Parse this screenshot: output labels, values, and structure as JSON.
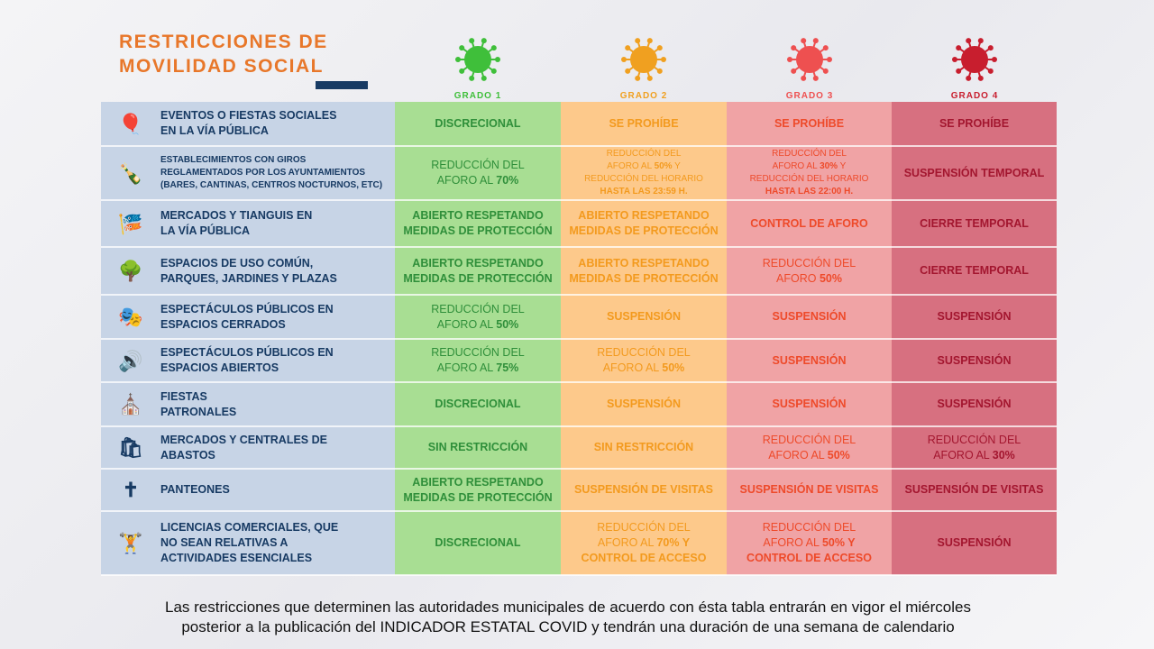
{
  "title": [
    "RESTRICCIONES DE",
    "MOVILIDAD SOCIAL"
  ],
  "grades": [
    {
      "label": "GRADO 1",
      "color": "#3fbf3a"
    },
    {
      "label": "GRADO 2",
      "color": "#f0a020"
    },
    {
      "label": "GRADO 3",
      "color": "#ee5050"
    },
    {
      "label": "GRADO 4",
      "color": "#c81e2e"
    }
  ],
  "rows": [
    {
      "icon": "balloons-icon",
      "glyph": "🎈",
      "small": false,
      "label": [
        "EVENTOS O FIESTAS SOCIALES",
        "EN LA VÍA PÚBLICA"
      ],
      "h": 49,
      "cells": [
        [
          [
            {
              "t": "DISCRECIONAL",
              "b": true
            }
          ]
        ],
        [
          [
            {
              "t": "SE PROHÍBE",
              "b": true
            }
          ]
        ],
        [
          [
            {
              "t": "SE PROHÍBE",
              "b": true
            }
          ]
        ],
        [
          [
            {
              "t": "SE PROHÍBE",
              "b": true
            }
          ]
        ]
      ]
    },
    {
      "icon": "ice-bucket-icon",
      "glyph": "🍾",
      "small": true,
      "label": [
        "ESTABLECIMIENTOS CON GIROS",
        "REGLAMENTADOS POR LOS AYUNTAMIENTOS",
        "(BARES, CANTINAS, CENTROS NOCTURNOS, ETC)"
      ],
      "h": 60,
      "cells": [
        [
          [
            {
              "t": "REDUCCIÓN DEL",
              "b": false
            }
          ],
          [
            {
              "t": "AFORO AL ",
              "b": false
            },
            {
              "t": "70%",
              "b": true
            }
          ]
        ],
        [
          [
            {
              "t": "REDUCCIÓN DEL",
              "b": false
            }
          ],
          [
            {
              "t": "AFORO AL ",
              "b": false
            },
            {
              "t": "50%",
              "b": true
            },
            {
              "t": " Y",
              "b": false
            }
          ],
          [
            {
              "t": "REDUCCIÓN DEL HORARIO",
              "b": false
            }
          ],
          [
            {
              "t": "HASTA LAS 23:59 H.",
              "b": true
            }
          ]
        ],
        [
          [
            {
              "t": "REDUCCIÓN DEL",
              "b": false
            }
          ],
          [
            {
              "t": "AFORO AL ",
              "b": false
            },
            {
              "t": "30%",
              "b": true
            },
            {
              "t": " Y",
              "b": false
            }
          ],
          [
            {
              "t": "REDUCCIÓN DEL HORARIO",
              "b": false
            }
          ],
          [
            {
              "t": "HASTA LAS 22:00 H.",
              "b": true
            }
          ]
        ],
        [
          [
            {
              "t": "SUSPENSIÓN TEMPORAL",
              "b": true
            }
          ]
        ]
      ]
    },
    {
      "icon": "bunting-icon",
      "glyph": "🎏",
      "small": false,
      "label": [
        "MERCADOS Y TIANGUIS EN",
        "LA VÍA PÚBLICA"
      ],
      "h": 52,
      "cells": [
        [
          [
            {
              "t": "ABIERTO RESPETANDO",
              "b": true
            }
          ],
          [
            {
              "t": "MEDIDAS DE PROTECCIÓN",
              "b": true
            }
          ]
        ],
        [
          [
            {
              "t": "ABIERTO RESPETANDO",
              "b": true
            }
          ],
          [
            {
              "t": "MEDIDAS DE PROTECCIÓN",
              "b": true
            }
          ]
        ],
        [
          [
            {
              "t": "CONTROL DE AFORO",
              "b": true
            }
          ]
        ],
        [
          [
            {
              "t": "CIERRE TEMPORAL",
              "b": true
            }
          ]
        ]
      ]
    },
    {
      "icon": "park-icon",
      "glyph": "🌳",
      "small": false,
      "label": [
        "ESPACIOS DE USO COMÚN,",
        "PARQUES, JARDINES Y PLAZAS"
      ],
      "h": 53,
      "cells": [
        [
          [
            {
              "t": "ABIERTO RESPETANDO",
              "b": true
            }
          ],
          [
            {
              "t": "MEDIDAS DE PROTECCIÓN",
              "b": true
            }
          ]
        ],
        [
          [
            {
              "t": "ABIERTO RESPETANDO",
              "b": true
            }
          ],
          [
            {
              "t": "MEDIDAS DE PROTECCIÓN",
              "b": true
            }
          ]
        ],
        [
          [
            {
              "t": "REDUCCIÓN DEL",
              "b": false
            }
          ],
          [
            {
              "t": "AFORO ",
              "b": false
            },
            {
              "t": "50%",
              "b": true
            }
          ]
        ],
        [
          [
            {
              "t": "CIERRE TEMPORAL",
              "b": true
            }
          ]
        ]
      ]
    },
    {
      "icon": "theater-icon",
      "glyph": "🎭",
      "small": false,
      "label": [
        "ESPECTÁCULOS PÚBLICOS EN",
        "ESPACIOS CERRADOS"
      ],
      "h": 49,
      "cells": [
        [
          [
            {
              "t": "REDUCCIÓN DEL",
              "b": false
            }
          ],
          [
            {
              "t": "AFORO AL ",
              "b": false
            },
            {
              "t": "50%",
              "b": true
            }
          ]
        ],
        [
          [
            {
              "t": "SUSPENSIÓN",
              "b": true
            }
          ]
        ],
        [
          [
            {
              "t": "SUSPENSIÓN",
              "b": true
            }
          ]
        ],
        [
          [
            {
              "t": "SUSPENSIÓN",
              "b": true
            }
          ]
        ]
      ]
    },
    {
      "icon": "speakers-icon",
      "glyph": "🔊",
      "small": false,
      "label": [
        "ESPECTÁCULOS PÚBLICOS EN",
        "ESPACIOS ABIERTOS"
      ],
      "h": 48,
      "cells": [
        [
          [
            {
              "t": "REDUCCIÓN DEL",
              "b": false
            }
          ],
          [
            {
              "t": "AFORO AL ",
              "b": false
            },
            {
              "t": "75%",
              "b": true
            }
          ]
        ],
        [
          [
            {
              "t": "REDUCCIÓN DEL",
              "b": false
            }
          ],
          [
            {
              "t": "AFORO AL ",
              "b": false
            },
            {
              "t": "50%",
              "b": true
            }
          ]
        ],
        [
          [
            {
              "t": "SUSPENSIÓN",
              "b": true
            }
          ]
        ],
        [
          [
            {
              "t": "SUSPENSIÓN",
              "b": true
            }
          ]
        ]
      ]
    },
    {
      "icon": "church-icon",
      "glyph": "⛪",
      "small": false,
      "label": [
        "FIESTAS",
        "PATRONALES"
      ],
      "h": 49,
      "cells": [
        [
          [
            {
              "t": "DISCRECIONAL",
              "b": true
            }
          ]
        ],
        [
          [
            {
              "t": "SUSPENSIÓN",
              "b": true
            }
          ]
        ],
        [
          [
            {
              "t": "SUSPENSIÓN",
              "b": true
            }
          ]
        ],
        [
          [
            {
              "t": "SUSPENSIÓN",
              "b": true
            }
          ]
        ]
      ]
    },
    {
      "icon": "shopping-bag-icon",
      "glyph": "🛍",
      "small": false,
      "label": [
        "MERCADOS  Y  CENTRALES  DE",
        "ABASTOS"
      ],
      "h": 47,
      "cells": [
        [
          [
            {
              "t": "SIN RESTRICCIÓN",
              "b": true
            }
          ]
        ],
        [
          [
            {
              "t": "SIN RESTRICCIÓN",
              "b": true
            }
          ]
        ],
        [
          [
            {
              "t": "REDUCCIÓN DEL",
              "b": false
            }
          ],
          [
            {
              "t": "AFORO AL ",
              "b": false
            },
            {
              "t": "50%",
              "b": true
            }
          ]
        ],
        [
          [
            {
              "t": "REDUCCIÓN DEL",
              "b": false
            }
          ],
          [
            {
              "t": "AFORO AL ",
              "b": false
            },
            {
              "t": "30%",
              "b": true
            }
          ]
        ]
      ]
    },
    {
      "icon": "tombstones-icon",
      "glyph": "✝",
      "small": false,
      "label": [
        "PANTEONES"
      ],
      "h": 47,
      "cells": [
        [
          [
            {
              "t": "ABIERTO RESPETANDO",
              "b": true
            }
          ],
          [
            {
              "t": "MEDIDAS DE PROTECCIÓN",
              "b": true
            }
          ]
        ],
        [
          [
            {
              "t": "SUSPENSIÓN DE VISITAS",
              "b": true
            }
          ]
        ],
        [
          [
            {
              "t": "SUSPENSIÓN DE VISITAS",
              "b": true
            }
          ]
        ],
        [
          [
            {
              "t": "SUSPENSIÓN DE VISITAS",
              "b": true
            }
          ]
        ]
      ]
    },
    {
      "icon": "dumbbell-icon",
      "glyph": "🏋",
      "small": false,
      "label": [
        "LICENCIAS COMERCIALES, QUE",
        "NO SEAN RELATIVAS A",
        "ACTIVIDADES ESENCIALES"
      ],
      "h": 71,
      "cells": [
        [
          [
            {
              "t": "DISCRECIONAL",
              "b": true
            }
          ]
        ],
        [
          [
            {
              "t": "REDUCCIÓN DEL",
              "b": false
            }
          ],
          [
            {
              "t": "AFORO AL ",
              "b": false
            },
            {
              "t": "70% Y",
              "b": true
            }
          ],
          [
            {
              "t": "CONTROL DE ACCESO",
              "b": true
            }
          ]
        ],
        [
          [
            {
              "t": "REDUCCIÓN DEL",
              "b": false
            }
          ],
          [
            {
              "t": "AFORO AL ",
              "b": false
            },
            {
              "t": "50% Y",
              "b": true
            }
          ],
          [
            {
              "t": "CONTROL DE ACCESO",
              "b": true
            }
          ]
        ],
        [
          [
            {
              "t": "SUSPENSIÓN",
              "b": true
            }
          ]
        ]
      ]
    }
  ],
  "footer": [
    "Las restricciones que determinen las autoridades municipales de acuerdo con ésta tabla entrarán en vigor el miércoles",
    "posterior a la publicación del INDICADOR ESTATAL COVID y tendrán una duración de una semana de calendario"
  ]
}
